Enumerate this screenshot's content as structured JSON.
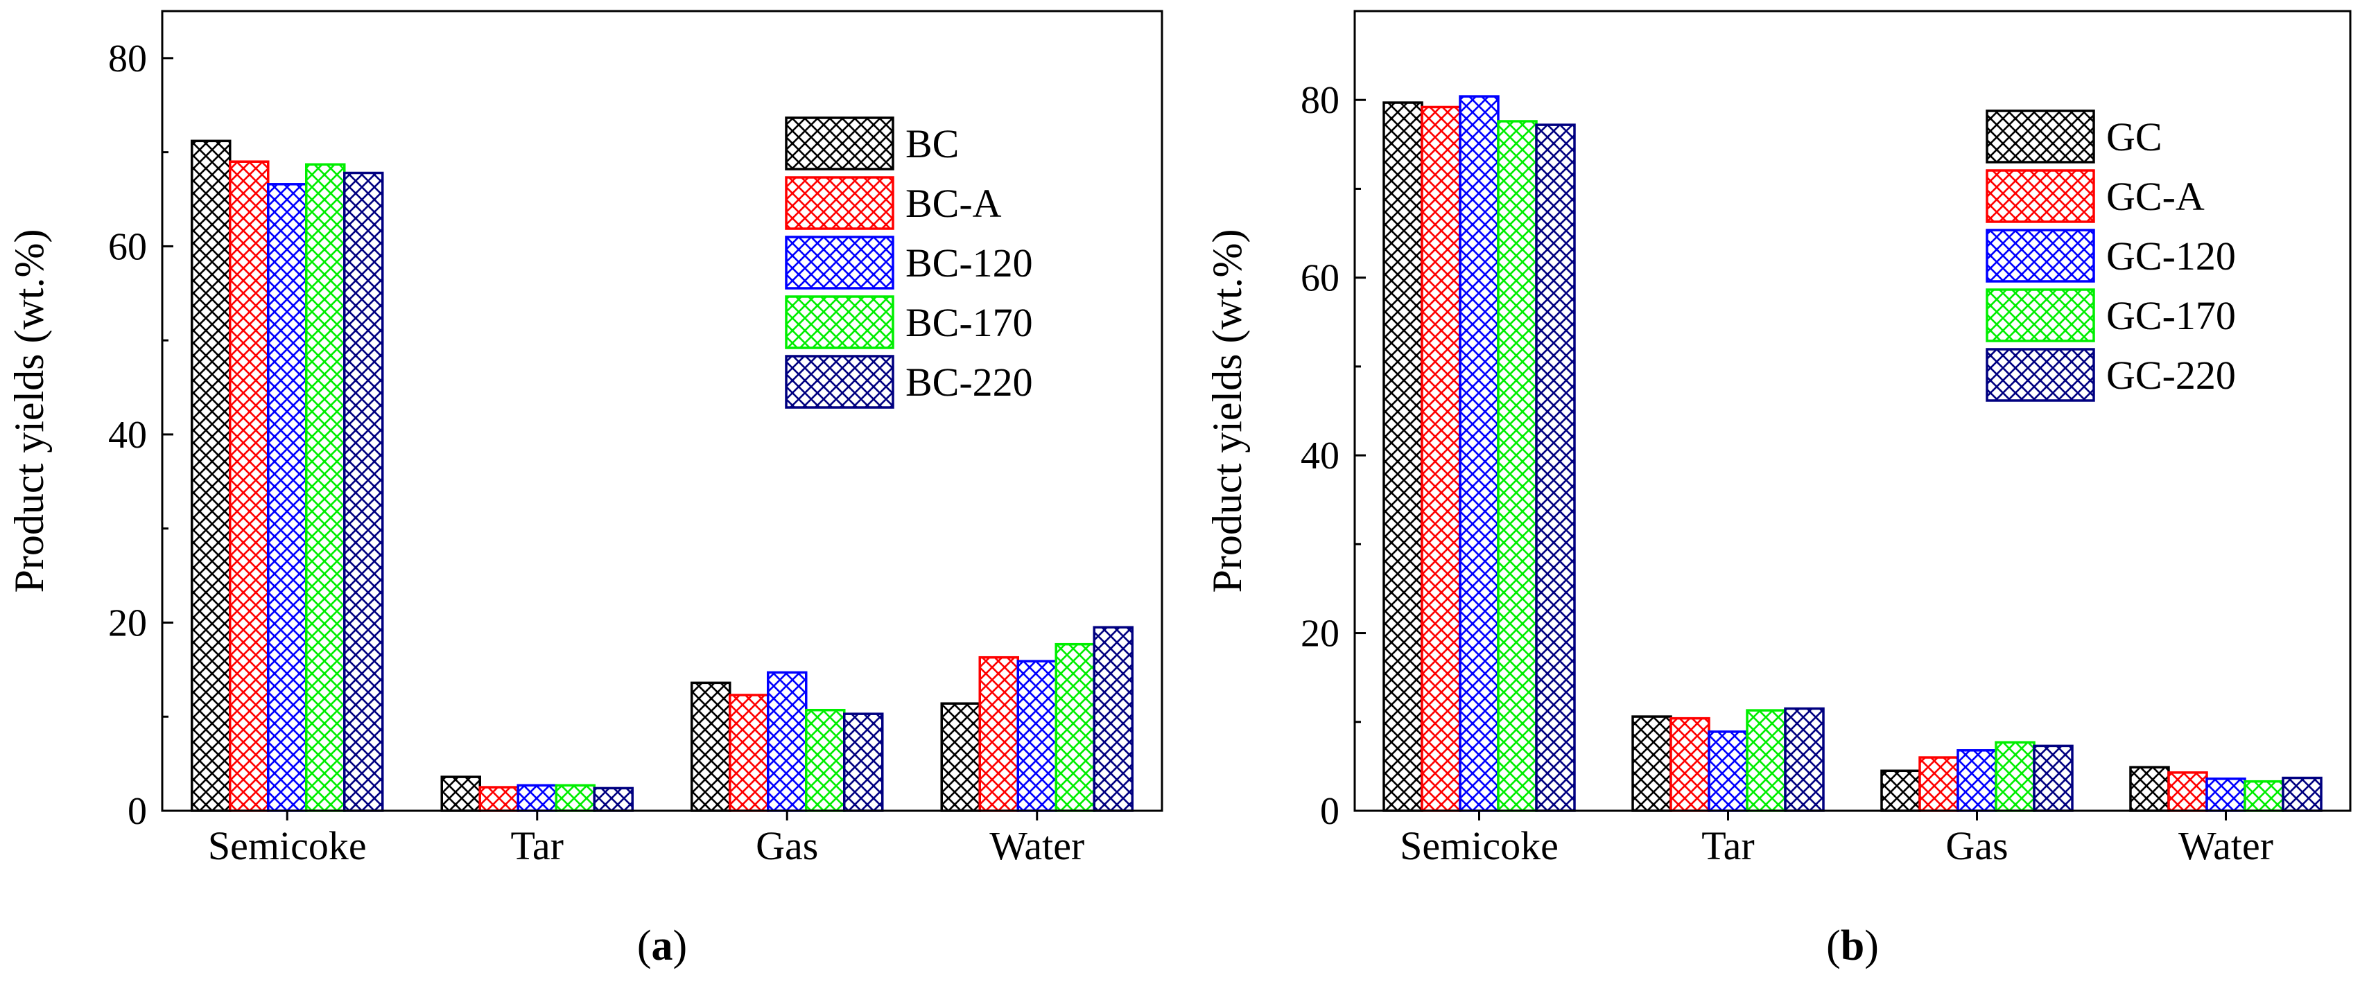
{
  "colors": {
    "BC": "#000000",
    "BC-A": "#ff0000",
    "BC-120": "#0000ff",
    "BC-170": "#00ee00",
    "BC-220": "#000080",
    "GC": "#000000",
    "GC-A": "#ff0000",
    "GC-120": "#0000ff",
    "GC-170": "#00ee00",
    "GC-220": "#000080"
  },
  "chart_data": [
    {
      "type": "bar",
      "panel_label": "(a)",
      "panel_letter": "a",
      "ylabel": "Product yields (wt.%)",
      "xlabel": "",
      "ylim": [
        0,
        85
      ],
      "yticks": [
        0,
        20,
        40,
        60,
        80
      ],
      "grid": false,
      "legend_position": "top-right",
      "categories": [
        "Semicoke",
        "Tar",
        "Gas",
        "Water"
      ],
      "series": [
        {
          "name": "BC",
          "color": "#000000",
          "values": [
            71.2,
            3.6,
            13.6,
            11.4
          ]
        },
        {
          "name": "BC-A",
          "color": "#ff0000",
          "values": [
            69.0,
            2.5,
            12.3,
            16.3
          ]
        },
        {
          "name": "BC-120",
          "color": "#0000ff",
          "values": [
            66.6,
            2.7,
            14.7,
            15.9
          ]
        },
        {
          "name": "BC-170",
          "color": "#00ee00",
          "values": [
            68.7,
            2.7,
            10.7,
            17.7
          ]
        },
        {
          "name": "BC-220",
          "color": "#000080",
          "values": [
            67.8,
            2.4,
            10.3,
            19.5
          ]
        }
      ]
    },
    {
      "type": "bar",
      "panel_label": "(b)",
      "panel_letter": "b",
      "ylabel": "Product yields (wt.%)",
      "xlabel": "",
      "ylim": [
        0,
        90
      ],
      "yticks": [
        0,
        20,
        40,
        60,
        80
      ],
      "grid": false,
      "legend_position": "top-right",
      "categories": [
        "Semicoke",
        "Tar",
        "Gas",
        "Water"
      ],
      "series": [
        {
          "name": "GC",
          "color": "#000000",
          "values": [
            79.7,
            10.6,
            4.5,
            4.9
          ]
        },
        {
          "name": "GC-A",
          "color": "#ff0000",
          "values": [
            79.2,
            10.4,
            6.0,
            4.3
          ]
        },
        {
          "name": "GC-120",
          "color": "#0000ff",
          "values": [
            80.4,
            8.9,
            6.8,
            3.6
          ]
        },
        {
          "name": "GC-170",
          "color": "#00ee00",
          "values": [
            77.6,
            11.3,
            7.7,
            3.3
          ]
        },
        {
          "name": "GC-220",
          "color": "#000080",
          "values": [
            77.2,
            11.5,
            7.3,
            3.7
          ]
        }
      ]
    }
  ]
}
